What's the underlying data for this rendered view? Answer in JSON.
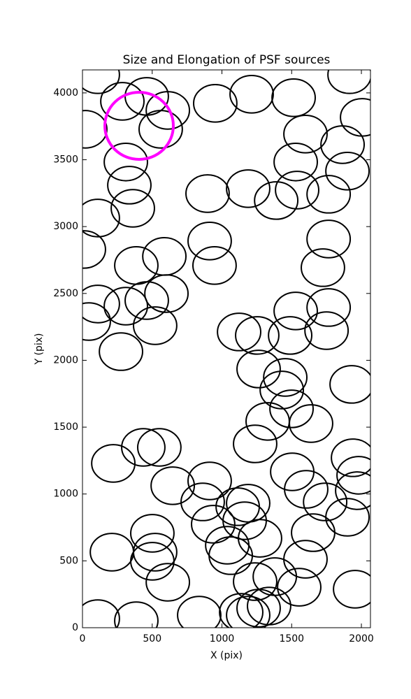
{
  "chart_data": {
    "type": "scatter",
    "marker": "ellipse",
    "title": "Size and Elongation of PSF sources",
    "xlabel": "X (pix)",
    "ylabel": "Y (pix)",
    "xlim": [
      0,
      2065
    ],
    "ylim": [
      0,
      4172
    ],
    "xticks": [
      0,
      500,
      1000,
      1500,
      2000
    ],
    "yticks": [
      0,
      500,
      1000,
      1500,
      2000,
      2500,
      3000,
      3500,
      4000
    ],
    "grid": false,
    "series": [
      {
        "color": "#000000",
        "width": 310,
        "height": 280,
        "x": [
          110,
          286,
          461,
          612,
          561,
          311,
          336,
          361,
          20,
          110,
          10,
          386,
          587,
          110,
          45,
          311,
          461,
          602,
          521,
          276,
          952,
          1213,
          1514,
          1599,
          1529,
          1865,
          1900,
          2005,
          1765,
          1539,
          1188,
          897,
          1389,
          912,
          947,
          1765,
          1724,
          1765,
          1750,
          1529,
          1489,
          1123,
          1253,
          1263,
          1454,
          1429,
          1499,
          1639,
          1328,
          1238,
          1930,
          221,
          436,
          551,
          647,
          912,
          862,
          937,
          501,
          521,
          501,
          612,
          211,
          110,
          386,
          837,
          1138,
          1113,
          1188,
          1163,
          1038,
          1063,
          1273,
          1238,
          1263,
          1338,
          1188,
          1379,
          1504,
          1604,
          1654,
          1599,
          1554,
          1740,
          1900,
          1940,
          1980,
          1970,
          1955,
          1915
        ],
        "y": [
          4136,
          3937,
          3974,
          3869,
          3728,
          3483,
          3310,
          3137,
          3728,
          3064,
          2829,
          2709,
          2777,
          2421,
          2290,
          2405,
          2447,
          2499,
          2259,
          2065,
          3922,
          3990,
          3964,
          3692,
          3483,
          3613,
          3415,
          3817,
          3242,
          3273,
          3284,
          3247,
          3195,
          2892,
          2709,
          2907,
          2693,
          2395,
          2222,
          2369,
          2186,
          2212,
          2186,
          1935,
          1872,
          1778,
          1637,
          1527,
          1543,
          1375,
          1820,
          1229,
          1349,
          1349,
          1062,
          1098,
          941,
          774,
          706,
          565,
          497,
          340,
          565,
          68,
          52,
          94,
          115,
          905,
          931,
          800,
          617,
          539,
          669,
          345,
          146,
          162,
          94,
          382,
          1166,
          1035,
          711,
          512,
          303,
          941,
          826,
          1271,
          1140,
          1025,
          288,
          4136
        ]
      },
      {
        "color": "#ff00ff",
        "width": 491,
        "height": 502,
        "x": [
          406
        ],
        "y": [
          3754
        ]
      }
    ]
  }
}
